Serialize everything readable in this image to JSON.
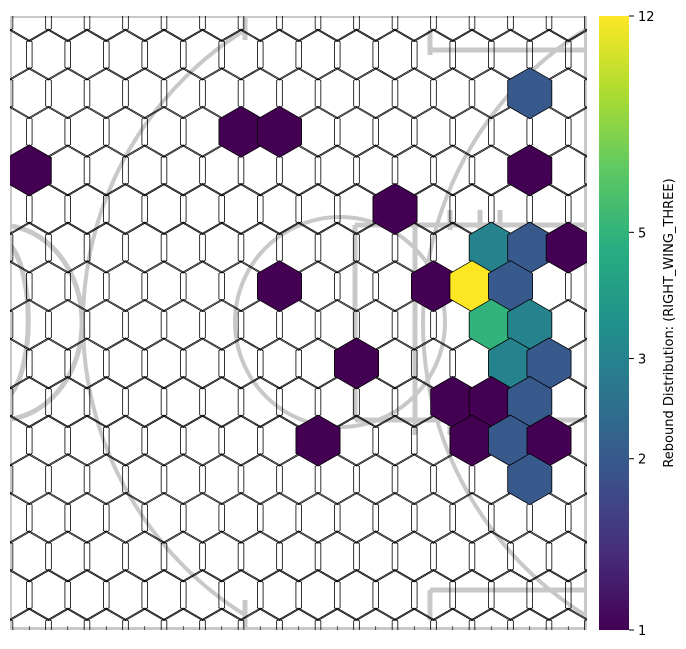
{
  "chart_data": {
    "type": "heatmap",
    "title": "",
    "xlabel": "",
    "ylabel": "",
    "colorbar": {
      "label": "Rebound Distribution: (RIGHT_WING_THREE)",
      "scale": "log",
      "min": 1,
      "max": 12,
      "ticks": [
        1,
        2,
        3,
        5,
        12
      ],
      "tick_labels": [
        "1",
        "2",
        "3",
        "5",
        "12"
      ],
      "colormap": "viridis"
    },
    "grid": {
      "columns": 15,
      "rows": 16,
      "odd_rows_offset": "half-cell-left"
    },
    "cells": [
      {
        "row": 2,
        "col": 13,
        "value": 2
      },
      {
        "row": 3,
        "col": 6,
        "value": 1
      },
      {
        "row": 3,
        "col": 7,
        "value": 1
      },
      {
        "row": 4,
        "col": 0,
        "value": 1
      },
      {
        "row": 4,
        "col": 13,
        "value": 1
      },
      {
        "row": 5,
        "col": 10,
        "value": 1
      },
      {
        "row": 6,
        "col": 12,
        "value": 3
      },
      {
        "row": 6,
        "col": 13,
        "value": 2
      },
      {
        "row": 6,
        "col": 14,
        "value": 1
      },
      {
        "row": 7,
        "col": 7,
        "value": 1
      },
      {
        "row": 7,
        "col": 11,
        "value": 1
      },
      {
        "row": 7,
        "col": 12,
        "value": 12
      },
      {
        "row": 7,
        "col": 13,
        "value": 2
      },
      {
        "row": 8,
        "col": 12,
        "value": 5
      },
      {
        "row": 8,
        "col": 13,
        "value": 3
      },
      {
        "row": 9,
        "col": 9,
        "value": 1
      },
      {
        "row": 9,
        "col": 13,
        "value": 3
      },
      {
        "row": 9,
        "col": 14,
        "value": 2
      },
      {
        "row": 10,
        "col": 11,
        "value": 1
      },
      {
        "row": 10,
        "col": 12,
        "value": 1
      },
      {
        "row": 10,
        "col": 13,
        "value": 2
      },
      {
        "row": 11,
        "col": 8,
        "value": 1
      },
      {
        "row": 11,
        "col": 12,
        "value": 1
      },
      {
        "row": 11,
        "col": 13,
        "value": 2
      },
      {
        "row": 11,
        "col": 14,
        "value": 1
      },
      {
        "row": 12,
        "col": 13,
        "value": 2
      }
    ],
    "colors": {
      "empty_fill": "#ffffff",
      "hex_stroke": "#000000",
      "court_lines": "#c8c8c8"
    }
  }
}
